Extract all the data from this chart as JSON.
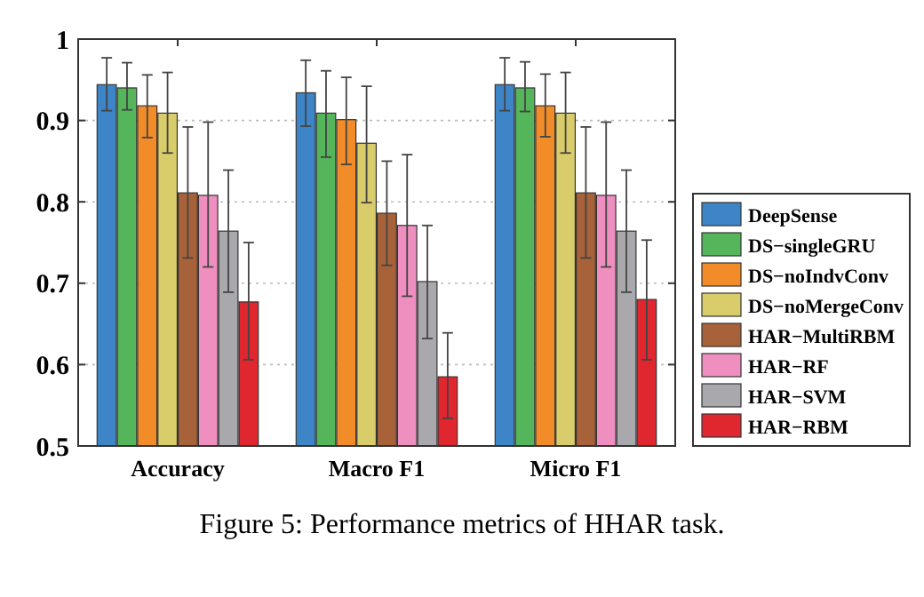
{
  "chart_data": {
    "type": "bar",
    "categories": [
      "Accuracy",
      "Macro F1",
      "Micro F1"
    ],
    "series": [
      {
        "name": "DeepSense",
        "color": "#3d85c6",
        "values": [
          0.944,
          0.934,
          0.944
        ],
        "errors": [
          [
            0.912,
            0.977
          ],
          [
            0.893,
            0.974
          ],
          [
            0.912,
            0.977
          ]
        ]
      },
      {
        "name": "DS−singleGRU",
        "color": "#55b55a",
        "values": [
          0.94,
          0.909,
          0.94
        ],
        "errors": [
          [
            0.913,
            0.971
          ],
          [
            0.855,
            0.961
          ],
          [
            0.911,
            0.972
          ]
        ]
      },
      {
        "name": "DS−noIndvConv",
        "color": "#f28c28",
        "values": [
          0.918,
          0.901,
          0.918
        ],
        "errors": [
          [
            0.879,
            0.956
          ],
          [
            0.846,
            0.953
          ],
          [
            0.88,
            0.957
          ]
        ]
      },
      {
        "name": "DS−noMergeConv",
        "color": "#d9cc6a",
        "values": [
          0.909,
          0.872,
          0.909
        ],
        "errors": [
          [
            0.86,
            0.959
          ],
          [
            0.799,
            0.942
          ],
          [
            0.86,
            0.959
          ]
        ]
      },
      {
        "name": "HAR−MultiRBM",
        "color": "#a8623a",
        "values": [
          0.811,
          0.786,
          0.811
        ],
        "errors": [
          [
            0.731,
            0.892
          ],
          [
            0.722,
            0.85
          ],
          [
            0.731,
            0.892
          ]
        ]
      },
      {
        "name": "HAR−RF",
        "color": "#ef8fc0",
        "values": [
          0.808,
          0.771,
          0.808
        ],
        "errors": [
          [
            0.72,
            0.898
          ],
          [
            0.684,
            0.858
          ],
          [
            0.72,
            0.898
          ]
        ]
      },
      {
        "name": "HAR−SVM",
        "color": "#a9a9ad",
        "values": [
          0.764,
          0.702,
          0.764
        ],
        "errors": [
          [
            0.689,
            0.839
          ],
          [
            0.632,
            0.771
          ],
          [
            0.689,
            0.839
          ]
        ]
      },
      {
        "name": "HAR−RBM",
        "color": "#e0262e",
        "values": [
          0.677,
          0.585,
          0.68
        ],
        "errors": [
          [
            0.606,
            0.75
          ],
          [
            0.534,
            0.639
          ],
          [
            0.606,
            0.753
          ]
        ]
      }
    ],
    "ylim": [
      0.5,
      1
    ],
    "yticks": [
      0.5,
      0.6,
      0.7,
      0.8,
      0.9,
      {
        "value": 1,
        "label": "1"
      }
    ],
    "grid": "y",
    "legend": "right",
    "annotations": [
      "Figure 5: Performance metrics of HHAR task."
    ]
  }
}
